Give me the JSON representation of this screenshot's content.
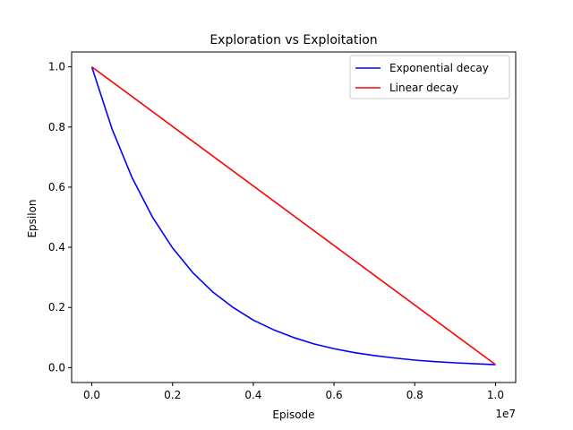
{
  "chart_data": {
    "type": "line",
    "title": "Exploration vs Exploitation",
    "xlabel": "Episode",
    "ylabel": "Epsilon",
    "x_offset_text": "1e7",
    "xlim": [
      -0.05,
      1.05
    ],
    "ylim": [
      -0.0495,
      1.0495
    ],
    "x_ticks": [
      0.0,
      0.2,
      0.4,
      0.6,
      0.8,
      1.0
    ],
    "x_tick_labels": [
      "0.0",
      "0.2",
      "0.4",
      "0.6",
      "0.8",
      "1.0"
    ],
    "y_ticks": [
      0.0,
      0.2,
      0.4,
      0.6,
      0.8,
      1.0
    ],
    "y_tick_labels": [
      "0.0",
      "0.2",
      "0.4",
      "0.6",
      "0.8",
      "1.0"
    ],
    "grid": false,
    "legend_position": "top-right",
    "series": [
      {
        "name": "Exponential decay",
        "color": "#0000ff",
        "x": [
          0.0,
          0.05,
          0.1,
          0.15,
          0.2,
          0.25,
          0.3,
          0.35,
          0.4,
          0.45,
          0.5,
          0.55,
          0.6,
          0.65,
          0.7,
          0.75,
          0.8,
          0.85,
          0.9,
          0.95,
          1.0
        ],
        "y": [
          1.0,
          0.794,
          0.631,
          0.501,
          0.398,
          0.316,
          0.251,
          0.2,
          0.158,
          0.126,
          0.1,
          0.079,
          0.063,
          0.05,
          0.04,
          0.032,
          0.025,
          0.02,
          0.016,
          0.013,
          0.01
        ]
      },
      {
        "name": "Linear decay",
        "color": "#ff0000",
        "x": [
          0.0,
          1.0
        ],
        "y": [
          1.0,
          0.01
        ]
      }
    ]
  }
}
